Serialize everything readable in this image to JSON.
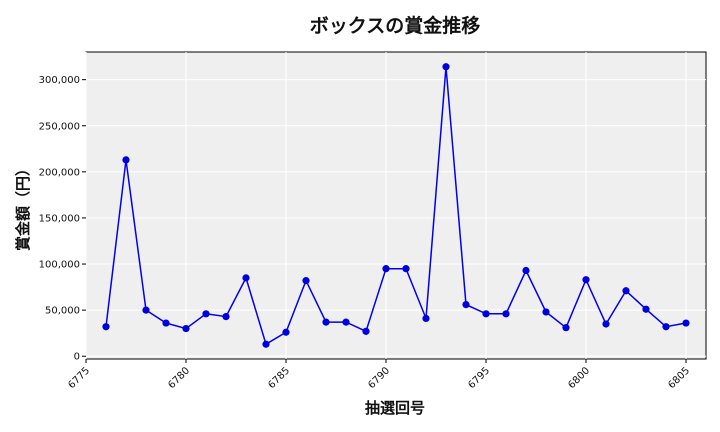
{
  "chart_data": {
    "type": "line",
    "title": "ボックスの賞金推移",
    "xlabel": "抽選回号",
    "ylabel": "賞金額（円）",
    "xlim": [
      6775,
      6806
    ],
    "ylim": [
      -3000,
      330000
    ],
    "xticks": [
      6775,
      6780,
      6785,
      6790,
      6795,
      6800,
      6805
    ],
    "yticks": [
      0,
      50000,
      100000,
      150000,
      200000,
      250000,
      300000
    ],
    "ytick_labels": [
      "0",
      "50,000",
      "100,000",
      "150,000",
      "200,000",
      "250,000",
      "300,000"
    ],
    "grid": true,
    "line_color": "#0000ee",
    "marker_color": "#0000dd",
    "plot_bg": "#efefef",
    "series": [
      {
        "x": [
          6776,
          6777,
          6778,
          6779,
          6780,
          6781,
          6782,
          6783,
          6784,
          6785,
          6786,
          6787,
          6788,
          6789,
          6790,
          6791,
          6792,
          6793,
          6794,
          6795,
          6796,
          6797,
          6798,
          6799,
          6800,
          6801,
          6802,
          6803,
          6804,
          6805
        ],
        "y": [
          32000,
          213000,
          50000,
          36000,
          30000,
          46000,
          43000,
          85000,
          13000,
          26000,
          82000,
          37000,
          37000,
          27000,
          95000,
          95000,
          41000,
          314000,
          56000,
          46000,
          46000,
          93000,
          48000,
          31000,
          83000,
          35000,
          71000,
          51000,
          32000,
          36000
        ]
      }
    ]
  }
}
